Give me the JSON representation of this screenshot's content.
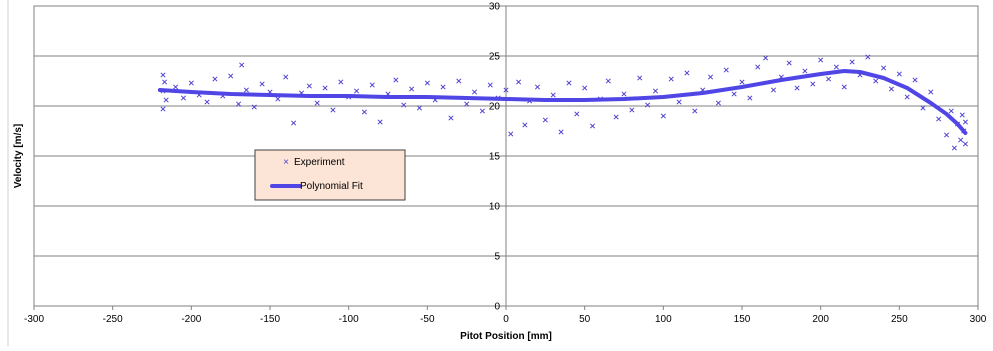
{
  "chart_data": {
    "type": "scatter",
    "xlabel": "Pitot Position  [mm]",
    "ylabel": "Velocity [m/s]",
    "xlim": [
      -300,
      300
    ],
    "ylim": [
      0,
      30
    ],
    "x_ticks": [
      -300,
      -250,
      -200,
      -150,
      -100,
      -50,
      0,
      50,
      100,
      150,
      200,
      250,
      300
    ],
    "y_ticks": [
      0,
      5,
      10,
      15,
      20,
      25,
      30
    ],
    "grid": "horizontal",
    "legend_position": "left-center",
    "series": [
      {
        "name": "Experiment",
        "type": "scatter",
        "marker": "x",
        "color": "#4a3fd0",
        "points": [
          [
            -218,
            21.5
          ],
          [
            -218,
            23.1
          ],
          [
            -218,
            19.7
          ],
          [
            -217,
            22.4
          ],
          [
            -216,
            20.6
          ],
          [
            -210,
            21.9
          ],
          [
            -205,
            20.8
          ],
          [
            -200,
            22.3
          ],
          [
            -195,
            21.1
          ],
          [
            -190,
            20.4
          ],
          [
            -185,
            22.7
          ],
          [
            -180,
            21.0
          ],
          [
            -175,
            23.0
          ],
          [
            -170,
            20.2
          ],
          [
            -168,
            24.1
          ],
          [
            -165,
            21.6
          ],
          [
            -160,
            19.9
          ],
          [
            -155,
            22.2
          ],
          [
            -150,
            21.4
          ],
          [
            -145,
            20.7
          ],
          [
            -140,
            22.9
          ],
          [
            -135,
            18.3
          ],
          [
            -130,
            21.3
          ],
          [
            -125,
            22.0
          ],
          [
            -120,
            20.3
          ],
          [
            -115,
            21.8
          ],
          [
            -110,
            19.6
          ],
          [
            -105,
            22.4
          ],
          [
            -100,
            20.9
          ],
          [
            -95,
            21.5
          ],
          [
            -90,
            19.4
          ],
          [
            -85,
            22.1
          ],
          [
            -80,
            18.4
          ],
          [
            -75,
            21.2
          ],
          [
            -70,
            22.6
          ],
          [
            -65,
            20.1
          ],
          [
            -60,
            21.7
          ],
          [
            -55,
            19.8
          ],
          [
            -50,
            22.3
          ],
          [
            -45,
            20.6
          ],
          [
            -40,
            21.9
          ],
          [
            -35,
            18.8
          ],
          [
            -30,
            22.5
          ],
          [
            -25,
            20.2
          ],
          [
            -20,
            21.4
          ],
          [
            -15,
            19.5
          ],
          [
            -10,
            22.1
          ],
          [
            -5,
            20.8
          ],
          [
            0,
            21.6
          ],
          [
            3,
            17.2
          ],
          [
            8,
            22.4
          ],
          [
            12,
            18.1
          ],
          [
            15,
            20.5
          ],
          [
            20,
            21.9
          ],
          [
            25,
            18.6
          ],
          [
            30,
            21.1
          ],
          [
            35,
            17.4
          ],
          [
            40,
            22.3
          ],
          [
            45,
            19.2
          ],
          [
            50,
            21.8
          ],
          [
            55,
            18.0
          ],
          [
            60,
            20.7
          ],
          [
            65,
            22.5
          ],
          [
            70,
            18.9
          ],
          [
            75,
            21.2
          ],
          [
            80,
            19.6
          ],
          [
            85,
            22.8
          ],
          [
            90,
            20.1
          ],
          [
            95,
            21.5
          ],
          [
            100,
            19.0
          ],
          [
            105,
            22.7
          ],
          [
            110,
            20.4
          ],
          [
            115,
            23.3
          ],
          [
            120,
            19.5
          ],
          [
            125,
            21.6
          ],
          [
            130,
            22.9
          ],
          [
            135,
            20.3
          ],
          [
            140,
            23.6
          ],
          [
            145,
            21.2
          ],
          [
            150,
            22.4
          ],
          [
            155,
            20.8
          ],
          [
            160,
            23.9
          ],
          [
            165,
            24.8
          ],
          [
            170,
            21.6
          ],
          [
            175,
            22.9
          ],
          [
            180,
            24.3
          ],
          [
            185,
            21.8
          ],
          [
            190,
            23.5
          ],
          [
            195,
            22.2
          ],
          [
            200,
            24.6
          ],
          [
            205,
            22.7
          ],
          [
            210,
            23.9
          ],
          [
            215,
            21.9
          ],
          [
            220,
            24.4
          ],
          [
            225,
            23.1
          ],
          [
            230,
            24.9
          ],
          [
            235,
            22.5
          ],
          [
            240,
            23.8
          ],
          [
            245,
            21.7
          ],
          [
            250,
            23.2
          ],
          [
            255,
            20.9
          ],
          [
            260,
            22.6
          ],
          [
            265,
            19.8
          ],
          [
            270,
            21.4
          ],
          [
            275,
            18.7
          ],
          [
            280,
            17.1
          ],
          [
            283,
            19.5
          ],
          [
            285,
            15.8
          ],
          [
            287,
            18.2
          ],
          [
            289,
            16.6
          ],
          [
            290,
            19.1
          ],
          [
            291,
            17.5
          ],
          [
            292,
            16.2
          ],
          [
            292,
            18.4
          ]
        ]
      },
      {
        "name": "Polynomial Fit",
        "type": "line",
        "color": "#5046e6",
        "points": [
          [
            -220,
            21.6
          ],
          [
            -200,
            21.4
          ],
          [
            -175,
            21.2
          ],
          [
            -150,
            21.1
          ],
          [
            -125,
            21.0
          ],
          [
            -100,
            21.0
          ],
          [
            -75,
            20.9
          ],
          [
            -50,
            20.9
          ],
          [
            -25,
            20.8
          ],
          [
            0,
            20.7
          ],
          [
            25,
            20.6
          ],
          [
            50,
            20.6
          ],
          [
            75,
            20.7
          ],
          [
            100,
            20.9
          ],
          [
            125,
            21.3
          ],
          [
            150,
            21.9
          ],
          [
            175,
            22.6
          ],
          [
            200,
            23.2
          ],
          [
            215,
            23.5
          ],
          [
            225,
            23.4
          ],
          [
            240,
            22.8
          ],
          [
            255,
            21.8
          ],
          [
            270,
            20.3
          ],
          [
            280,
            19.2
          ],
          [
            287,
            18.2
          ],
          [
            292,
            17.3
          ]
        ]
      }
    ]
  }
}
